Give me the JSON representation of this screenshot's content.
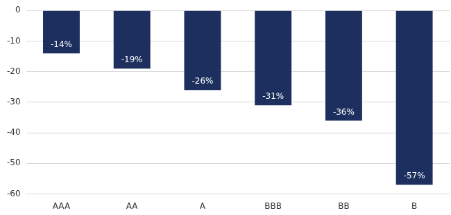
{
  "chart_data": {
    "type": "bar",
    "categories": [
      "AAA",
      "AA",
      "A",
      "BBB",
      "BB",
      "B"
    ],
    "values": [
      -14,
      -19,
      -26,
      -31,
      -36,
      -57
    ],
    "value_labels": [
      "-14%",
      "-19%",
      "-26%",
      "-31%",
      "-36%",
      "-57%"
    ],
    "color": "#1c2f5e",
    "ylim": [
      -60,
      0
    ],
    "yticks": [
      -60,
      -50,
      -40,
      -30,
      -20,
      -10,
      0
    ],
    "grid": true,
    "data_labels": true
  }
}
